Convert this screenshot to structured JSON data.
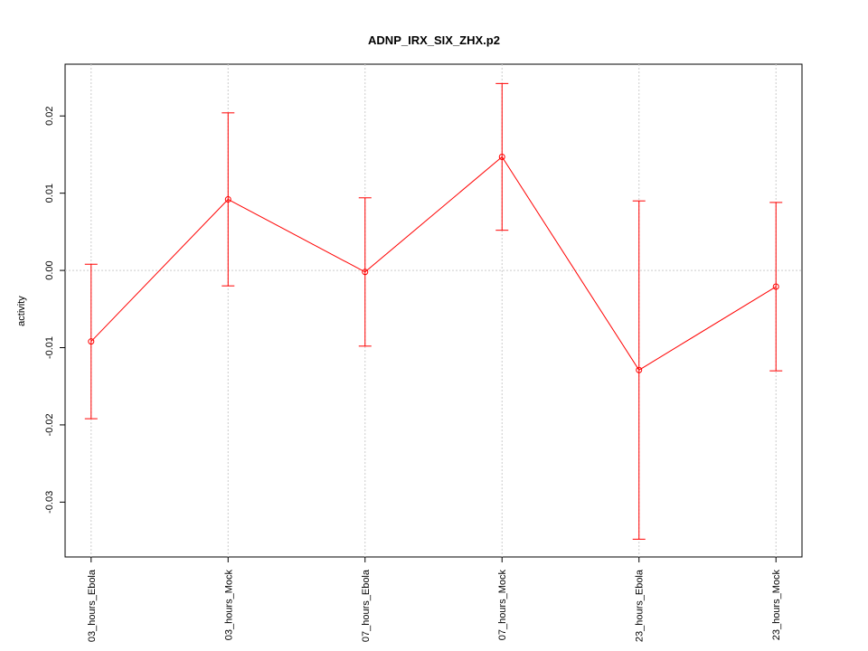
{
  "chart_data": {
    "type": "line",
    "title": "ADNP_IRX_SIX_ZHX.p2",
    "y_label": "activity",
    "categories": [
      "03_hours_Ebola",
      "03_hours_Mock",
      "07_hours_Ebola",
      "07_hours_Mock",
      "23_hours_Ebola",
      "23_hours_Mock"
    ],
    "series": [
      {
        "color": "#ff0000",
        "values": [
          -0.0092,
          0.0092,
          -0.0002,
          0.0147,
          -0.0129,
          -0.0021
        ],
        "errors": [
          0.01,
          0.0112,
          0.0096,
          0.0095,
          0.0219,
          0.0109
        ]
      }
    ],
    "ylim": [
      -0.0371,
      0.0267
    ],
    "yticks": [
      -0.03,
      -0.02,
      -0.01,
      {
        "value": 0,
        "label": "0.00"
      },
      0.01,
      0.02
    ],
    "reference_line": 0,
    "grid": true
  }
}
